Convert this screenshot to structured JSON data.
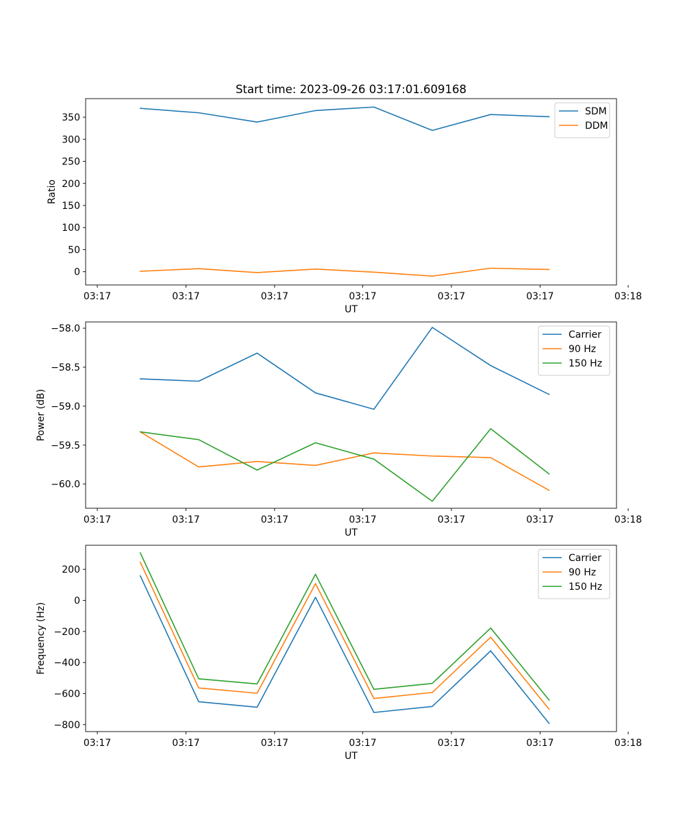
{
  "chart_data": [
    {
      "type": "line",
      "title": "Start time: 2023-09-26 03:17:01.609168",
      "xlabel": "UT",
      "ylabel": "Ratio",
      "xlim": [
        0,
        1
      ],
      "ylim": [
        -30,
        392
      ],
      "legend_position": "top-right",
      "x": [
        0.103,
        0.213,
        0.323,
        0.433,
        0.543,
        0.653,
        0.763,
        0.873
      ],
      "x_ticks": [
        {
          "pos": 0.022,
          "label": "03:17"
        },
        {
          "pos": 0.189,
          "label": "03:17"
        },
        {
          "pos": 0.356,
          "label": "03:17"
        },
        {
          "pos": 0.522,
          "label": "03:17"
        },
        {
          "pos": 0.689,
          "label": "03:17"
        },
        {
          "pos": 0.856,
          "label": "03:17"
        },
        {
          "pos": 1.022,
          "label": "03:18"
        }
      ],
      "y_ticks": [
        {
          "value": 0,
          "label": "0"
        },
        {
          "value": 50,
          "label": "50"
        },
        {
          "value": 100,
          "label": "100"
        },
        {
          "value": 150,
          "label": "150"
        },
        {
          "value": 200,
          "label": "200"
        },
        {
          "value": 250,
          "label": "250"
        },
        {
          "value": 300,
          "label": "300"
        },
        {
          "value": 350,
          "label": "350"
        }
      ],
      "series": [
        {
          "name": "SDM",
          "color": "#1f77b4",
          "values": [
            370,
            360,
            339,
            365,
            373,
            320,
            356,
            351
          ]
        },
        {
          "name": "DDM",
          "color": "#ff7f0e",
          "values": [
            1,
            7,
            -2,
            6,
            -1,
            -10,
            8,
            5
          ]
        }
      ]
    },
    {
      "type": "line",
      "title": "",
      "xlabel": "UT",
      "ylabel": "Power (dB)",
      "xlim": [
        0,
        1
      ],
      "ylim": [
        -60.31,
        -57.92
      ],
      "legend_position": "top-right",
      "x": [
        0.103,
        0.213,
        0.323,
        0.433,
        0.543,
        0.653,
        0.763,
        0.873
      ],
      "x_ticks": [
        {
          "pos": 0.022,
          "label": "03:17"
        },
        {
          "pos": 0.189,
          "label": "03:17"
        },
        {
          "pos": 0.356,
          "label": "03:17"
        },
        {
          "pos": 0.522,
          "label": "03:17"
        },
        {
          "pos": 0.689,
          "label": "03:17"
        },
        {
          "pos": 0.856,
          "label": "03:17"
        },
        {
          "pos": 1.022,
          "label": "03:18"
        }
      ],
      "y_ticks": [
        {
          "value": -60.0,
          "label": "−60.0"
        },
        {
          "value": -59.5,
          "label": "−59.5"
        },
        {
          "value": -59.0,
          "label": "−59.0"
        },
        {
          "value": -58.5,
          "label": "−58.5"
        },
        {
          "value": -58.0,
          "label": "−58.0"
        }
      ],
      "series": [
        {
          "name": "Carrier",
          "color": "#1f77b4",
          "values": [
            -58.65,
            -58.68,
            -58.32,
            -58.83,
            -59.04,
            -57.99,
            -58.48,
            -58.85
          ]
        },
        {
          "name": "90 Hz",
          "color": "#ff7f0e",
          "values": [
            -59.33,
            -59.78,
            -59.71,
            -59.76,
            -59.6,
            -59.64,
            -59.66,
            -60.08
          ]
        },
        {
          "name": "150 Hz",
          "color": "#2ca02c",
          "values": [
            -59.33,
            -59.43,
            -59.82,
            -59.47,
            -59.68,
            -60.22,
            -59.29,
            -59.87
          ]
        }
      ]
    },
    {
      "type": "line",
      "title": "",
      "xlabel": "UT",
      "ylabel": "Frequency (Hz)",
      "xlim": [
        0,
        1
      ],
      "ylim": [
        -845,
        355
      ],
      "legend_position": "top-right",
      "x": [
        0.103,
        0.213,
        0.323,
        0.433,
        0.543,
        0.653,
        0.763,
        0.873
      ],
      "x_ticks": [
        {
          "pos": 0.022,
          "label": "03:17"
        },
        {
          "pos": 0.189,
          "label": "03:17"
        },
        {
          "pos": 0.356,
          "label": "03:17"
        },
        {
          "pos": 0.522,
          "label": "03:17"
        },
        {
          "pos": 0.689,
          "label": "03:17"
        },
        {
          "pos": 0.856,
          "label": "03:17"
        },
        {
          "pos": 1.022,
          "label": "03:18"
        }
      ],
      "y_ticks": [
        {
          "value": -800,
          "label": "−800"
        },
        {
          "value": -600,
          "label": "−600"
        },
        {
          "value": -400,
          "label": "−400"
        },
        {
          "value": -200,
          "label": "−200"
        },
        {
          "value": 0,
          "label": "0"
        },
        {
          "value": 200,
          "label": "200"
        }
      ],
      "series": [
        {
          "name": "Carrier",
          "color": "#1f77b4",
          "values": [
            158,
            -653,
            -688,
            20,
            -722,
            -683,
            -325,
            -792
          ]
        },
        {
          "name": "90 Hz",
          "color": "#ff7f0e",
          "values": [
            246,
            -564,
            -598,
            108,
            -632,
            -593,
            -237,
            -701
          ]
        },
        {
          "name": "150 Hz",
          "color": "#2ca02c",
          "values": [
            306,
            -505,
            -538,
            168,
            -573,
            -535,
            -178,
            -642
          ]
        }
      ]
    }
  ]
}
